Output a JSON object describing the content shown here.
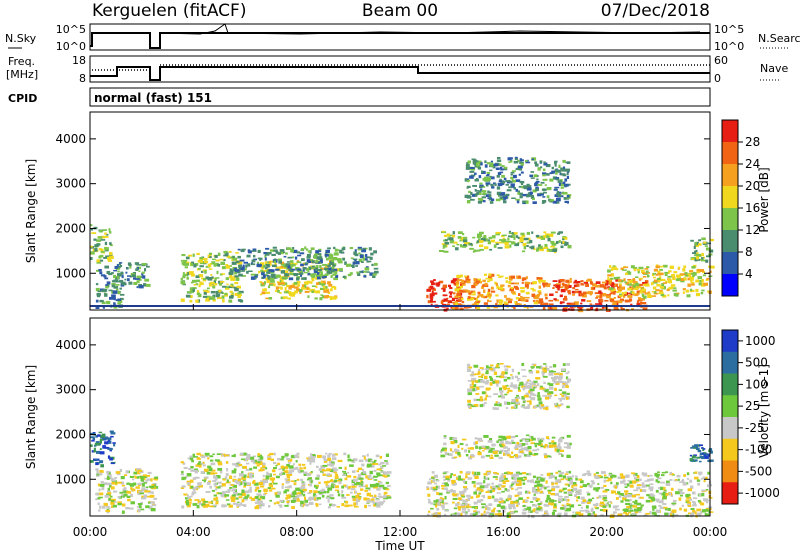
{
  "header": {
    "station": "Kerguelen (fitACF)",
    "beam": "Beam 00",
    "date": "07/Dec/2018"
  },
  "nsky_panel": {
    "left_label": "N.Sky",
    "right_label": "N.Search",
    "left_ticks": [
      "10^5",
      "10^0"
    ],
    "right_ticks": [
      "10^5",
      "10^0"
    ]
  },
  "freq_panel": {
    "left_label_1": "Freq.",
    "left_label_2": "[MHz]",
    "right_label": "Nave",
    "left_ticks": [
      "18",
      "8"
    ],
    "right_ticks": [
      "60",
      "0"
    ]
  },
  "cpid": {
    "label": "CPID",
    "value": "normal (fast) 151"
  },
  "chart_data": [
    {
      "type": "heatmap",
      "name": "power",
      "ylabel": "Slant Range [km]",
      "ylim": [
        180,
        4600
      ],
      "yticks": [
        1000,
        2000,
        3000,
        4000
      ],
      "colorbar_label": "Power [dB]",
      "colorbar_ticks": [
        "4",
        "8",
        "12",
        "16",
        "20",
        "24",
        "28"
      ],
      "colorbar_colors": [
        "#0000ff",
        "#2d5aa8",
        "#4a8c6e",
        "#7dc44a",
        "#f0d81e",
        "#f5a01e",
        "#f06414",
        "#e61e14"
      ],
      "patches": [
        {
          "t0": 0.0,
          "t1": 0.8,
          "r0": 1300,
          "r1": 2100,
          "level": 3
        },
        {
          "t0": 0.2,
          "t1": 1.2,
          "r0": 250,
          "r1": 1250,
          "level": 2
        },
        {
          "t0": 1.0,
          "t1": 2.2,
          "r0": 700,
          "r1": 1250,
          "level": 2
        },
        {
          "t0": 3.5,
          "t1": 5.8,
          "r0": 400,
          "r1": 1500,
          "level": 3
        },
        {
          "t0": 6.5,
          "t1": 9.5,
          "r0": 450,
          "r1": 1300,
          "level": 4
        },
        {
          "t0": 5.5,
          "t1": 11.0,
          "r0": 900,
          "r1": 1600,
          "level": 2
        },
        {
          "t0": 13.0,
          "t1": 14.5,
          "r0": 200,
          "r1": 900,
          "level": 7
        },
        {
          "t0": 14.0,
          "t1": 17.5,
          "r0": 250,
          "r1": 1000,
          "level": 5
        },
        {
          "t0": 13.5,
          "t1": 18.5,
          "r0": 1500,
          "r1": 1950,
          "level": 3
        },
        {
          "t0": 14.5,
          "t1": 18.5,
          "r0": 2600,
          "r1": 3600,
          "level": 2
        },
        {
          "t0": 17.5,
          "t1": 21.5,
          "r0": 200,
          "r1": 900,
          "level": 6
        },
        {
          "t0": 20.0,
          "t1": 24.0,
          "r0": 500,
          "r1": 1200,
          "level": 4
        },
        {
          "t0": 23.2,
          "t1": 24.0,
          "r0": 1300,
          "r1": 1800,
          "level": 3
        }
      ]
    },
    {
      "type": "heatmap",
      "name": "velocity",
      "ylabel": "Slant Range [km]",
      "ylim": [
        180,
        4600
      ],
      "yticks": [
        1000,
        2000,
        3000,
        4000
      ],
      "xlabel": "Time UT",
      "xlim": [
        0,
        24
      ],
      "xticks": [
        "00:00",
        "04:00",
        "08:00",
        "12:00",
        "16:00",
        "20:00",
        "00:00"
      ],
      "colorbar_label": "Velocity [m s-1]",
      "colorbar_ticks": [
        "1000",
        "500",
        "100",
        "25",
        "-25",
        "-100",
        "-500",
        "-1000"
      ],
      "colorbar_colors": [
        "#1e3cc8",
        "#2d6ea0",
        "#3c9650",
        "#6ec83c",
        "#c8c8c8",
        "#f5c81e",
        "#f08c14",
        "#e61e14"
      ],
      "patches": [
        {
          "t0": 0.0,
          "t1": 0.9,
          "r0": 1300,
          "r1": 2100,
          "level": 1
        },
        {
          "t0": 0.2,
          "t1": 2.5,
          "r0": 300,
          "r1": 1250,
          "level": 4
        },
        {
          "t0": 3.5,
          "t1": 11.5,
          "r0": 400,
          "r1": 1600,
          "level": 4
        },
        {
          "t0": 13.0,
          "t1": 24.0,
          "r0": 200,
          "r1": 1200,
          "level": 4
        },
        {
          "t0": 13.5,
          "t1": 18.5,
          "r0": 1500,
          "r1": 2000,
          "level": 4
        },
        {
          "t0": 14.5,
          "t1": 18.5,
          "r0": 2600,
          "r1": 3600,
          "level": 4
        },
        {
          "t0": 23.2,
          "t1": 24.0,
          "r0": 1400,
          "r1": 1800,
          "level": 1
        }
      ]
    }
  ]
}
